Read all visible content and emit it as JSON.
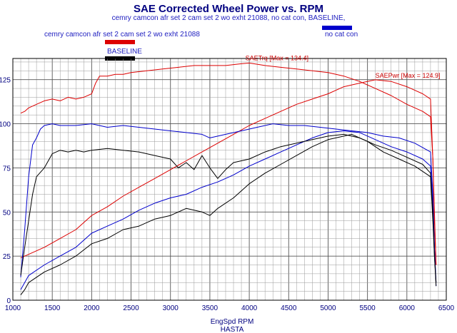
{
  "title": "SAE Corrected Wheel Power vs. RPM",
  "subtitle": "cemry camcon afr set 2 cam set 2 wo exht 21088, no cat con, BASELINE,",
  "legend": [
    {
      "label": "cemry camcon afr set 2 cam set 2 wo exht 21088",
      "color": "#dd0000"
    },
    {
      "label": "no cat con",
      "color": "#0000cc"
    },
    {
      "label": "BASELINE",
      "color": "#000000"
    }
  ],
  "chart_data": {
    "type": "line",
    "title": "SAE Corrected Wheel Power vs. RPM",
    "xlabel": "EngSpd RPM",
    "xlabel2": "HASTA",
    "ylabel": "",
    "xlim": [
      1000,
      6500
    ],
    "ylim": [
      0,
      137
    ],
    "xticks": [
      "1000",
      "1500",
      "2000",
      "2500",
      "3000",
      "3500",
      "4000",
      "4500",
      "5000",
      "5500",
      "6000",
      "6500"
    ],
    "xtick_values": [
      1000,
      1500,
      2000,
      2500,
      3000,
      3500,
      4000,
      4500,
      5000,
      5500,
      6000,
      6500
    ],
    "yticks": [
      "0",
      "25",
      "50",
      "75",
      "100",
      "125"
    ],
    "ytick_values": [
      0,
      25,
      50,
      75,
      100,
      125
    ],
    "grid": true,
    "annotations": [
      {
        "text": "SAETrq [Max = 134.4]",
        "x": 3950,
        "y": 136
      },
      {
        "text": "SAEPwr [Max = 124.9]",
        "x": 5600,
        "y": 126
      }
    ],
    "series": [
      {
        "name": "cemry SAETrq",
        "color": "#dd0000",
        "points": [
          [
            1100,
            106
          ],
          [
            1150,
            107
          ],
          [
            1200,
            109
          ],
          [
            1300,
            111
          ],
          [
            1400,
            113
          ],
          [
            1500,
            114
          ],
          [
            1600,
            113
          ],
          [
            1700,
            115
          ],
          [
            1800,
            114
          ],
          [
            1900,
            115
          ],
          [
            2000,
            117
          ],
          [
            2050,
            123
          ],
          [
            2100,
            127
          ],
          [
            2200,
            127
          ],
          [
            2300,
            128
          ],
          [
            2400,
            128
          ],
          [
            2500,
            129
          ],
          [
            2700,
            130
          ],
          [
            2900,
            131
          ],
          [
            3100,
            132
          ],
          [
            3300,
            133
          ],
          [
            3500,
            133
          ],
          [
            3700,
            133
          ],
          [
            3900,
            134
          ],
          [
            4000,
            134.4
          ],
          [
            4200,
            133
          ],
          [
            4400,
            132
          ],
          [
            4600,
            131
          ],
          [
            4800,
            130
          ],
          [
            5000,
            129
          ],
          [
            5200,
            127
          ],
          [
            5400,
            124
          ],
          [
            5600,
            120
          ],
          [
            5800,
            116
          ],
          [
            6000,
            111
          ],
          [
            6200,
            107
          ],
          [
            6300,
            104
          ],
          [
            6330,
            80
          ],
          [
            6350,
            50
          ],
          [
            6370,
            20
          ]
        ]
      },
      {
        "name": "cemry SAEPwr",
        "color": "#dd0000",
        "points": [
          [
            1100,
            24
          ],
          [
            1200,
            26
          ],
          [
            1400,
            30
          ],
          [
            1600,
            35
          ],
          [
            1800,
            40
          ],
          [
            2000,
            48
          ],
          [
            2200,
            53
          ],
          [
            2400,
            59
          ],
          [
            2600,
            64
          ],
          [
            2800,
            69
          ],
          [
            3000,
            74
          ],
          [
            3200,
            79
          ],
          [
            3400,
            84
          ],
          [
            3600,
            89
          ],
          [
            3800,
            94
          ],
          [
            4000,
            99
          ],
          [
            4200,
            103
          ],
          [
            4400,
            107
          ],
          [
            4600,
            111
          ],
          [
            4800,
            114
          ],
          [
            5000,
            117
          ],
          [
            5200,
            121
          ],
          [
            5400,
            123
          ],
          [
            5600,
            124.9
          ],
          [
            5800,
            124
          ],
          [
            6000,
            121
          ],
          [
            6200,
            117
          ],
          [
            6300,
            114
          ],
          [
            6330,
            80
          ],
          [
            6350,
            45
          ],
          [
            6370,
            20
          ]
        ]
      },
      {
        "name": "no cat con SAETrq",
        "color": "#0000cc",
        "points": [
          [
            1100,
            13
          ],
          [
            1150,
            40
          ],
          [
            1200,
            70
          ],
          [
            1250,
            88
          ],
          [
            1300,
            92
          ],
          [
            1350,
            97
          ],
          [
            1400,
            99
          ],
          [
            1500,
            100
          ],
          [
            1600,
            99
          ],
          [
            1800,
            99
          ],
          [
            2000,
            100
          ],
          [
            2200,
            98
          ],
          [
            2400,
            99
          ],
          [
            2600,
            98
          ],
          [
            2800,
            97
          ],
          [
            3000,
            96
          ],
          [
            3200,
            95
          ],
          [
            3400,
            94
          ],
          [
            3500,
            92
          ],
          [
            3700,
            94
          ],
          [
            3900,
            96
          ],
          [
            4100,
            98
          ],
          [
            4300,
            100
          ],
          [
            4500,
            99
          ],
          [
            4700,
            99
          ],
          [
            4900,
            98
          ],
          [
            5100,
            97
          ],
          [
            5300,
            96
          ],
          [
            5500,
            95
          ],
          [
            5700,
            93
          ],
          [
            5900,
            92
          ],
          [
            6100,
            89
          ],
          [
            6300,
            84
          ],
          [
            6330,
            60
          ],
          [
            6350,
            30
          ],
          [
            6370,
            8
          ]
        ]
      },
      {
        "name": "no cat con SAEPwr",
        "color": "#0000cc",
        "points": [
          [
            1100,
            6
          ],
          [
            1150,
            10
          ],
          [
            1200,
            14
          ],
          [
            1400,
            20
          ],
          [
            1600,
            25
          ],
          [
            1800,
            30
          ],
          [
            2000,
            38
          ],
          [
            2200,
            42
          ],
          [
            2400,
            46
          ],
          [
            2600,
            51
          ],
          [
            2800,
            55
          ],
          [
            3000,
            58
          ],
          [
            3200,
            60
          ],
          [
            3400,
            64
          ],
          [
            3600,
            67
          ],
          [
            3800,
            71
          ],
          [
            4000,
            76
          ],
          [
            4200,
            80
          ],
          [
            4400,
            84
          ],
          [
            4600,
            88
          ],
          [
            4800,
            92
          ],
          [
            5000,
            95
          ],
          [
            5200,
            96
          ],
          [
            5400,
            95
          ],
          [
            5600,
            91
          ],
          [
            5800,
            87
          ],
          [
            6000,
            84
          ],
          [
            6200,
            80
          ],
          [
            6300,
            76
          ],
          [
            6330,
            55
          ],
          [
            6350,
            30
          ],
          [
            6370,
            10
          ]
        ]
      },
      {
        "name": "BASELINE SAETrq",
        "color": "#000000",
        "points": [
          [
            1100,
            14
          ],
          [
            1150,
            30
          ],
          [
            1200,
            45
          ],
          [
            1250,
            60
          ],
          [
            1300,
            70
          ],
          [
            1400,
            75
          ],
          [
            1500,
            83
          ],
          [
            1600,
            85
          ],
          [
            1700,
            84
          ],
          [
            1800,
            85
          ],
          [
            1900,
            84
          ],
          [
            2000,
            85
          ],
          [
            2200,
            86
          ],
          [
            2400,
            85
          ],
          [
            2600,
            84
          ],
          [
            2800,
            82
          ],
          [
            3000,
            80
          ],
          [
            3100,
            75
          ],
          [
            3200,
            78
          ],
          [
            3300,
            74
          ],
          [
            3400,
            82
          ],
          [
            3500,
            75
          ],
          [
            3600,
            69
          ],
          [
            3700,
            74
          ],
          [
            3800,
            78
          ],
          [
            4000,
            80
          ],
          [
            4200,
            84
          ],
          [
            4400,
            87
          ],
          [
            4600,
            89
          ],
          [
            4800,
            91
          ],
          [
            5000,
            93
          ],
          [
            5200,
            94
          ],
          [
            5400,
            92
          ],
          [
            5600,
            88
          ],
          [
            5800,
            85
          ],
          [
            6000,
            81
          ],
          [
            6200,
            77
          ],
          [
            6300,
            72
          ],
          [
            6330,
            50
          ],
          [
            6350,
            25
          ],
          [
            6370,
            10
          ]
        ]
      },
      {
        "name": "BASELINE SAEPwr",
        "color": "#000000",
        "points": [
          [
            1100,
            3
          ],
          [
            1150,
            6
          ],
          [
            1200,
            10
          ],
          [
            1400,
            16
          ],
          [
            1600,
            20
          ],
          [
            1800,
            25
          ],
          [
            2000,
            32
          ],
          [
            2200,
            35
          ],
          [
            2400,
            40
          ],
          [
            2600,
            42
          ],
          [
            2800,
            46
          ],
          [
            3000,
            48
          ],
          [
            3200,
            52
          ],
          [
            3400,
            50
          ],
          [
            3500,
            48
          ],
          [
            3600,
            52
          ],
          [
            3800,
            58
          ],
          [
            4000,
            66
          ],
          [
            4200,
            72
          ],
          [
            4400,
            77
          ],
          [
            4600,
            82
          ],
          [
            4800,
            87
          ],
          [
            5000,
            91
          ],
          [
            5200,
            93
          ],
          [
            5300,
            94
          ],
          [
            5500,
            90
          ],
          [
            5700,
            84
          ],
          [
            5900,
            80
          ],
          [
            6100,
            76
          ],
          [
            6300,
            70
          ],
          [
            6330,
            45
          ],
          [
            6350,
            25
          ],
          [
            6370,
            8
          ]
        ]
      }
    ]
  }
}
